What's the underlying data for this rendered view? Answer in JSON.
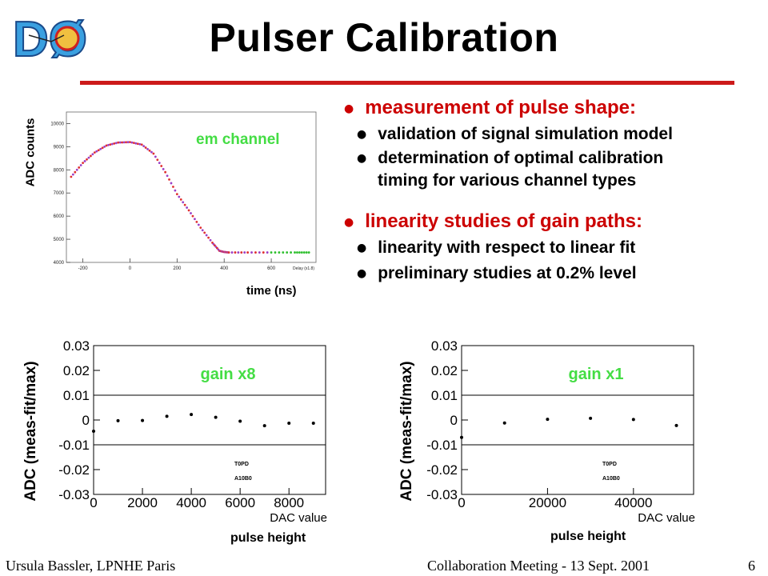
{
  "slide": {
    "title": "Pulser Calibration",
    "logo_text": "DØ",
    "accent_color": "#cc1a1a",
    "bullets": [
      {
        "text": "measurement of  pulse shape:",
        "sub": [
          "validation of signal simulation model",
          "determination of optimal calibration",
          "timing for various channel types"
        ]
      },
      {
        "text": "linearity studies of gain paths:",
        "sub": [
          "linearity with respect to linear fit",
          "preliminary studies at 0.2% level"
        ]
      }
    ],
    "footer": {
      "author": "Ursula Bassler, LPNHE Paris",
      "meeting": "Collaboration Meeting - 13 Sept. 2001",
      "page": "6"
    }
  },
  "chart_data": [
    {
      "type": "scatter",
      "title": "em channel",
      "ylabel": "ADC counts",
      "xlabel": "time (ns)",
      "axis_title": "Delay (x1.8)",
      "ylim": [
        4000,
        10500
      ],
      "xlim": [
        -270,
        790
      ],
      "yticks": [
        4000,
        5000,
        6000,
        7000,
        8000,
        9000,
        10000
      ],
      "xticks": [
        -200,
        0,
        200,
        400,
        600
      ],
      "colors": [
        "#e03030",
        "#9a40c8",
        "#30c030",
        "#606060"
      ],
      "series": [
        {
          "x": [
            -250,
            -200,
            -150,
            -100,
            -50,
            0,
            50,
            100,
            150,
            200,
            250,
            300,
            350,
            380,
            400,
            420,
            500,
            600,
            700,
            760
          ],
          "y": [
            7700,
            8300,
            8750,
            9050,
            9180,
            9200,
            9090,
            8700,
            7900,
            6950,
            6250,
            5500,
            4850,
            4500,
            4450,
            4430,
            4430,
            4430,
            4430,
            4430
          ]
        }
      ]
    },
    {
      "type": "scatter",
      "title": "gain x8",
      "ylabel": "ADC (meas-fit/max)",
      "xlabel": "DAC value",
      "caption": "pulse height",
      "labels": [
        "T0PD",
        "A10B0"
      ],
      "xlim": [
        0,
        9500
      ],
      "ylim": [
        -0.03,
        0.03
      ],
      "xticks": [
        0,
        2000,
        4000,
        6000,
        8000
      ],
      "yticks": [
        "-0.03",
        "-0.02",
        "-0.01",
        "0",
        "0.01",
        "0.02",
        "0.03"
      ],
      "gridlines": [
        -0.01,
        0.01
      ],
      "x": [
        0,
        1000,
        2000,
        3000,
        4000,
        5000,
        6000,
        7000,
        8000,
        9000
      ],
      "y": [
        -0.0045,
        -0.0003,
        -0.0002,
        0.0015,
        0.0022,
        0.0011,
        -0.0005,
        -0.0023,
        -0.0013,
        -0.0013
      ]
    },
    {
      "type": "scatter",
      "title": "gain x1",
      "ylabel": "ADC (meas-fit/max)",
      "xlabel": "DAC value",
      "caption": "pulse height",
      "labels": [
        "T0PD",
        "A10B0"
      ],
      "xlim": [
        0,
        54000
      ],
      "ylim": [
        -0.03,
        0.03
      ],
      "xticks": [
        0,
        20000,
        40000
      ],
      "yticks": [
        "-0.03",
        "-0.02",
        "-0.01",
        "0",
        "0.01",
        "0.02",
        "0.03"
      ],
      "gridlines": [
        -0.01,
        0.01
      ],
      "x": [
        0,
        10000,
        20000,
        30000,
        40000,
        50000
      ],
      "y": [
        -0.007,
        -0.0012,
        0.0003,
        0.0007,
        0.0002,
        -0.0022
      ]
    }
  ]
}
